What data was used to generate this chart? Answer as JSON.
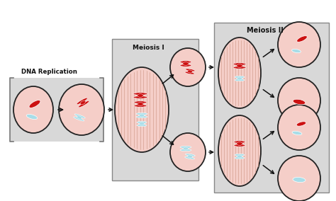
{
  "background_color": "#ffffff",
  "cell_fill": "#f5cec8",
  "cell_outline": "#222222",
  "spindle_line_color": "#d4a090",
  "chr_red": "#cc1111",
  "chr_blue": "#a8dde8",
  "chr_outline": "#ffffff",
  "box_fill": "#d8d8d8",
  "box_outline": "#888888",
  "arrow_color": "#111111",
  "label_dna": "DNA Replication",
  "label_m1": "Meiosis I",
  "label_m2": "Meiosis II",
  "text_color": "#111111"
}
